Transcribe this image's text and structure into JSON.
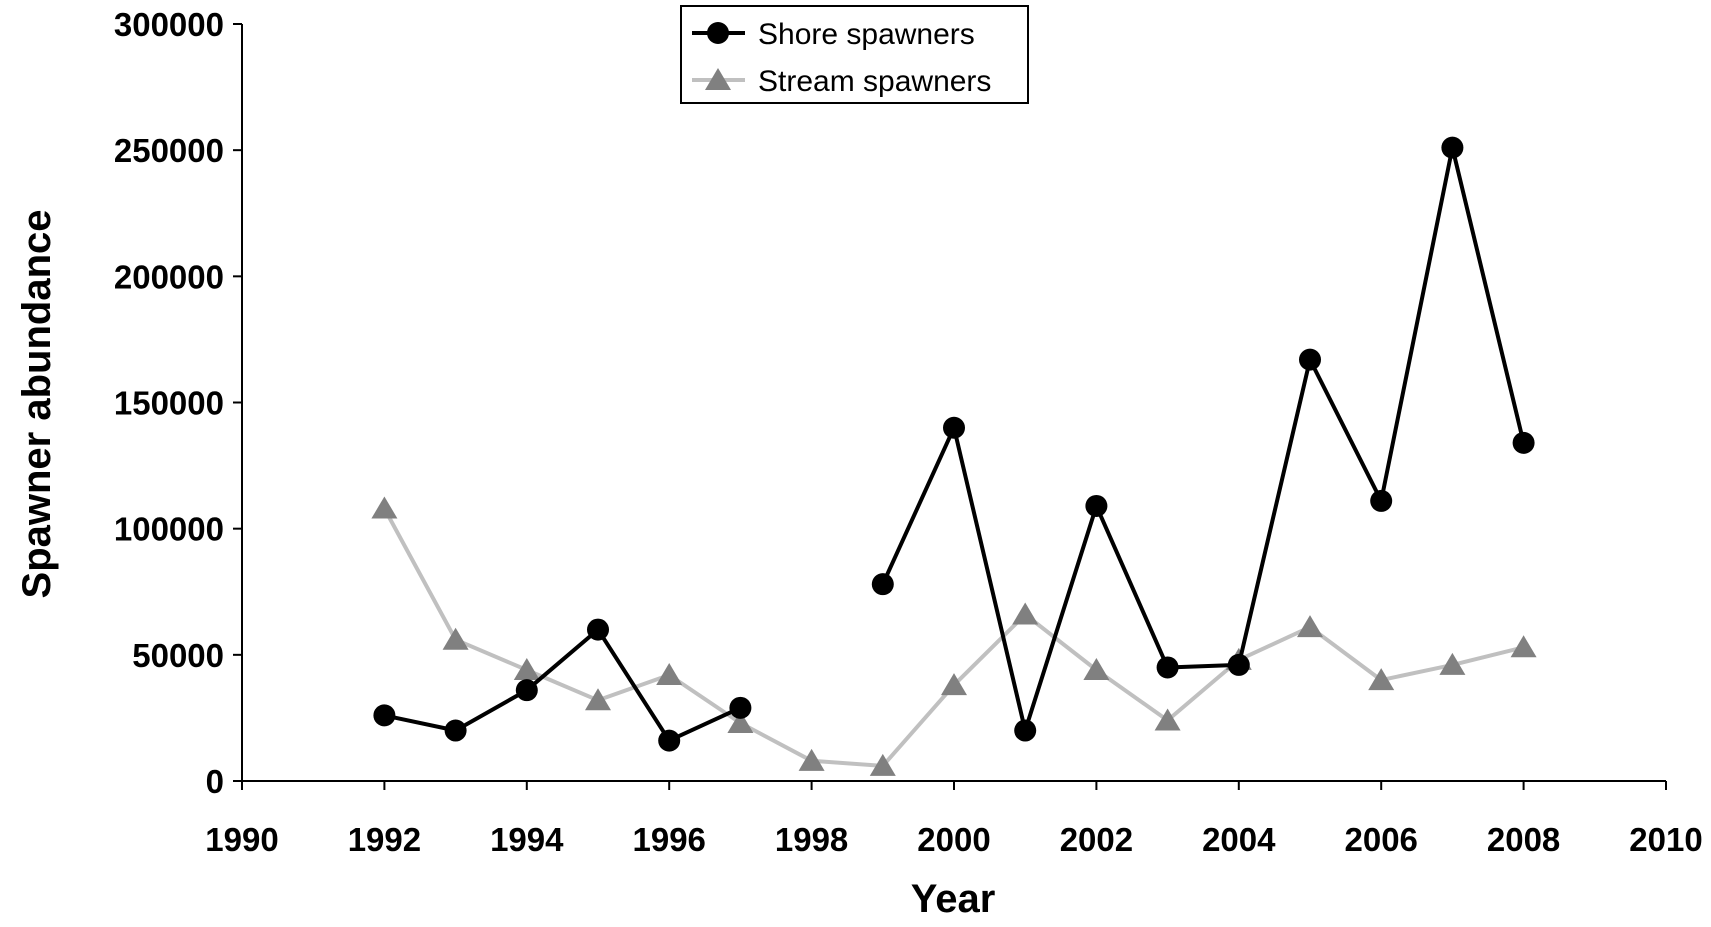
{
  "chart_data": {
    "type": "line",
    "title": "",
    "xlabel": "Year",
    "ylabel": "Spawner abundance",
    "xlim": [
      1990,
      2010
    ],
    "ylim": [
      0,
      300000
    ],
    "x_ticks": [
      "1990",
      "1992",
      "1994",
      "1996",
      "1998",
      "2000",
      "2002",
      "2004",
      "2006",
      "2008",
      "2010"
    ],
    "y_ticks": [
      "0",
      "50000",
      "100000",
      "150000",
      "200000",
      "250000",
      "300000"
    ],
    "grid": false,
    "legend_position": "top-center",
    "series": [
      {
        "name": "Shore spawners",
        "color": "#000000",
        "marker": "circle",
        "points": [
          [
            1992,
            26000
          ],
          [
            1993,
            20000
          ],
          [
            1994,
            36000
          ],
          [
            1995,
            60000
          ],
          [
            1996,
            16000
          ],
          [
            1997,
            29000
          ],
          [
            1999,
            78000
          ],
          [
            2000,
            140000
          ],
          [
            2001,
            20000
          ],
          [
            2002,
            109000
          ],
          [
            2003,
            45000
          ],
          [
            2004,
            46000
          ],
          [
            2005,
            167000
          ],
          [
            2006,
            111000
          ],
          [
            2007,
            251000
          ],
          [
            2008,
            134000
          ]
        ],
        "segments": [
          [
            0,
            5
          ],
          [
            6,
            15
          ]
        ]
      },
      {
        "name": "Stream spawners",
        "color": "#c0c0c0",
        "marker_color": "#808080",
        "marker": "triangle",
        "points": [
          [
            1992,
            108000
          ],
          [
            1993,
            56000
          ],
          [
            1994,
            44000
          ],
          [
            1995,
            32000
          ],
          [
            1996,
            42000
          ],
          [
            1997,
            23000
          ],
          [
            1998,
            8000
          ],
          [
            1999,
            6000
          ],
          [
            2000,
            38000
          ],
          [
            2001,
            66000
          ],
          [
            2002,
            44000
          ],
          [
            2003,
            24000
          ],
          [
            2004,
            48000
          ],
          [
            2005,
            61000
          ],
          [
            2006,
            40000
          ],
          [
            2007,
            46000
          ],
          [
            2008,
            53000
          ]
        ],
        "segments": [
          [
            0,
            16
          ]
        ]
      }
    ]
  }
}
